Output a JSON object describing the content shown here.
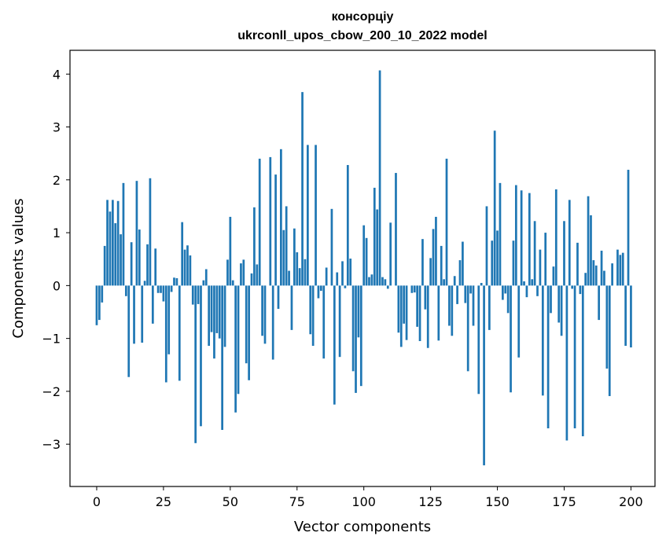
{
  "chart_data": {
    "type": "bar",
    "title_lines": [
      "консорціу",
      "ukrconll_upos_cbow_200_10_2022 model"
    ],
    "xlabel": "Vector components",
    "ylabel": "Components values",
    "xlim": [
      -10,
      209
    ],
    "ylim": [
      -3.8,
      4.45
    ],
    "xticks": [
      0,
      25,
      50,
      75,
      100,
      125,
      150,
      175,
      200
    ],
    "yticks": [
      -3,
      -2,
      -1,
      0,
      1,
      2,
      3,
      4
    ],
    "ytick_labels": [
      "−3",
      "−2",
      "−1",
      "0",
      "1",
      "2",
      "3",
      "4"
    ],
    "grid": false,
    "bar_color": "#1f77b4",
    "values": [
      -0.75,
      -0.65,
      -0.32,
      0.75,
      1.62,
      1.4,
      1.62,
      1.18,
      1.6,
      0.97,
      1.94,
      -0.2,
      -1.73,
      0.82,
      -1.1,
      1.98,
      1.06,
      -1.08,
      0.09,
      0.78,
      2.03,
      -0.72,
      0.7,
      -0.14,
      -0.14,
      -0.3,
      -1.83,
      -1.3,
      -0.12,
      0.15,
      0.14,
      -1.8,
      1.2,
      0.68,
      0.76,
      0.57,
      -0.36,
      -2.98,
      -0.35,
      -2.66,
      0.1,
      0.31,
      -1.14,
      -0.88,
      -1.38,
      -0.9,
      -1.0,
      -2.73,
      -1.16,
      0.49,
      1.3,
      0.1,
      -2.4,
      -2.05,
      0.42,
      0.49,
      -1.47,
      -1.79,
      0.23,
      1.48,
      0.4,
      2.4,
      -0.95,
      -1.1,
      0.0,
      2.43,
      -1.4,
      2.1,
      -0.44,
      2.58,
      1.05,
      1.5,
      0.28,
      -0.84,
      1.08,
      0.63,
      0.33,
      3.66,
      0.5,
      2.66,
      -0.92,
      -1.14,
      2.66,
      -0.24,
      -0.1,
      -1.38,
      0.34,
      0.0,
      1.45,
      -2.25,
      0.25,
      -1.35,
      0.46,
      -0.05,
      2.28,
      0.51,
      -1.62,
      -2.03,
      -0.98,
      -1.9,
      1.14,
      0.9,
      0.16,
      0.21,
      1.85,
      1.44,
      4.07,
      0.16,
      0.12,
      -0.06,
      1.19,
      0.0,
      2.13,
      -0.89,
      -1.16,
      -0.72,
      -1.03,
      0.0,
      -0.14,
      -0.13,
      -0.78,
      -1.05,
      0.88,
      -0.45,
      -1.18,
      0.52,
      1.07,
      1.3,
      -1.04,
      0.75,
      0.12,
      2.4,
      -0.76,
      -0.95,
      0.18,
      -0.35,
      0.48,
      0.83,
      -0.33,
      -1.62,
      -0.15,
      -0.76,
      0.0,
      -2.05,
      0.05,
      -3.4,
      1.5,
      -0.84,
      0.85,
      2.93,
      1.04,
      1.94,
      -0.27,
      -0.15,
      -0.52,
      -2.02,
      0.85,
      1.9,
      -1.36,
      1.8,
      0.08,
      -0.22,
      1.75,
      0.12,
      1.22,
      -0.2,
      0.68,
      -2.08,
      1.0,
      -2.7,
      -0.52,
      0.36,
      1.82,
      -0.7,
      -0.95,
      1.22,
      -2.93,
      1.62,
      -0.06,
      -2.7,
      0.81,
      -0.16,
      -2.85,
      0.24,
      1.69,
      1.33,
      0.48,
      0.38,
      -0.65,
      0.66,
      0.28,
      -1.57,
      -2.09,
      0.42,
      0.0,
      0.68,
      0.58,
      0.62,
      -1.14,
      2.19,
      -1.17
    ]
  }
}
